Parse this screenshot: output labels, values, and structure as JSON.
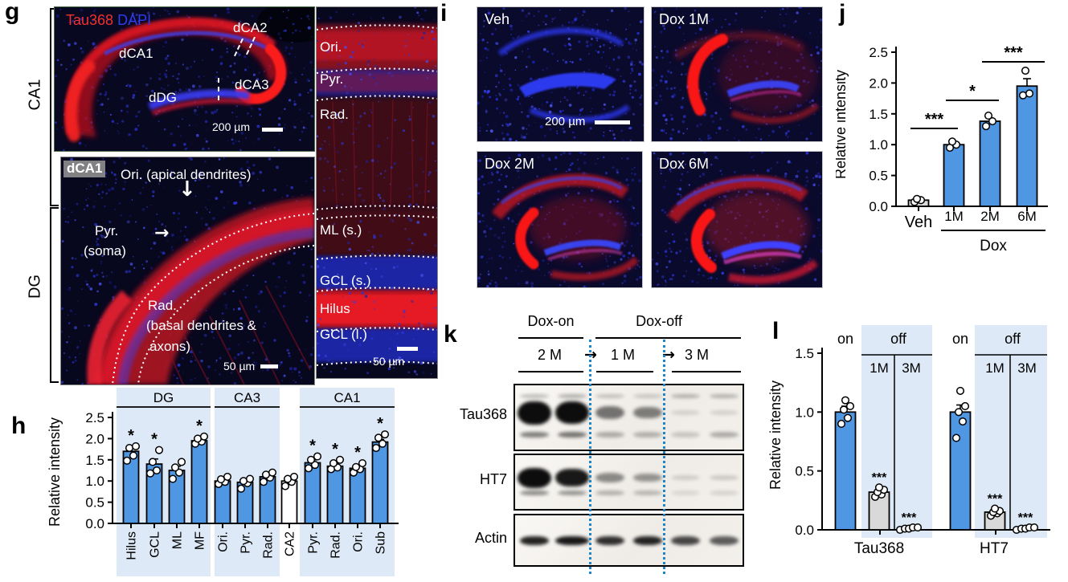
{
  "colors": {
    "bar_blue": "#4f97e3",
    "bar_gray": "#d9d9d9",
    "shade_blue": "#dde9f6",
    "stain_red": "#f23030",
    "stain_blue": "#2f3cf0",
    "blot_divider_blue": "#1e86c8"
  },
  "panels": {
    "g": {
      "letter": "g",
      "bracket_top": "CA1",
      "bracket_bottom": "DG",
      "main_image": {
        "stain_label_red": "Tau368",
        "stain_label_blue": "DAPI",
        "region_dca1": "dCA1",
        "region_dca2": "dCA2",
        "region_dca3": "dCA3",
        "region_ddg": "dDG",
        "scalebar": "200 µm"
      },
      "inset_image": {
        "tag": "dCA1",
        "ori_label": "Ori. (apical dendrites)",
        "arrow_down": "↓",
        "arrow_right": "→",
        "pyr_label_1": "Pyr.",
        "pyr_label_2": "(soma)",
        "rad_label_1": "Rad.",
        "rad_label_2": "(basal dendrites &",
        "rad_label_3": "axons)",
        "scalebar": "50 µm"
      },
      "strip_image": {
        "layer_ori": "Ori.",
        "layer_pyr": "Pyr.",
        "layer_rad": "Rad.",
        "layer_ml": "ML (s.)",
        "layer_gcl_s": "GCL (s.)",
        "layer_hilus": "Hilus",
        "layer_gcl_i": "GCL (l.)",
        "scalebar": "50 µm"
      }
    },
    "h": {
      "letter": "h"
    },
    "i": {
      "letter": "i",
      "images": [
        {
          "label": "Veh",
          "scalebar": "200 µm"
        },
        {
          "label": "Dox 1M"
        },
        {
          "label": "Dox 2M"
        },
        {
          "label": "Dox 6M"
        }
      ]
    },
    "j": {
      "letter": "j"
    },
    "k": {
      "letter": "k",
      "header_on": "Dox-on",
      "header_off": "Dox-off",
      "arrow": "→",
      "lane_times": [
        "2 M",
        "1 M",
        "3 M"
      ],
      "rows": [
        {
          "label": "Tau368",
          "lanes": [
            1,
            0.95,
            0.5,
            0.45,
            0.08,
            0.08
          ]
        },
        {
          "label": "HT7",
          "lanes": [
            1,
            0.9,
            0.4,
            0.35,
            0.1,
            0.12
          ]
        },
        {
          "label": "Actin",
          "lanes": [
            0.85,
            0.9,
            0.8,
            0.85,
            0.7,
            0.6
          ]
        }
      ]
    },
    "l": {
      "letter": "l"
    }
  },
  "chart_data": [
    {
      "id": "h",
      "type": "bar",
      "title": "",
      "xlabel": "",
      "ylabel": "Relative intensity",
      "ylim": [
        0,
        2.5
      ],
      "yticks": [
        0,
        0.5,
        1,
        1.5,
        2,
        2.5
      ],
      "grid": false,
      "groups": [
        {
          "name": "DG",
          "shaded": true,
          "bars": [
            {
              "label": "Hilus",
              "value": 1.7,
              "err": 0.08,
              "sig": "*",
              "fill": "blue",
              "points": [
                1.48,
                1.6,
                1.78,
                1.82
              ]
            },
            {
              "label": "GCL",
              "value": 1.4,
              "err": 0.12,
              "sig": "*",
              "fill": "blue",
              "points": [
                1.18,
                1.25,
                1.45,
                1.73
              ]
            },
            {
              "label": "ML",
              "value": 1.25,
              "err": 0.1,
              "sig": "",
              "fill": "blue",
              "points": [
                1.05,
                1.2,
                1.32,
                1.45
              ]
            },
            {
              "label": "MF",
              "value": 1.95,
              "err": 0.05,
              "sig": "*",
              "fill": "blue",
              "points": [
                1.88,
                1.93,
                2.0,
                2.05
              ]
            }
          ]
        },
        {
          "name": "CA3",
          "shaded": true,
          "bars": [
            {
              "label": "Ori.",
              "value": 1.0,
              "err": 0.05,
              "sig": "",
              "fill": "blue",
              "points": [
                0.93,
                0.98,
                1.04,
                1.1
              ]
            },
            {
              "label": "Pyr.",
              "value": 0.97,
              "err": 0.06,
              "sig": "",
              "fill": "blue",
              "points": [
                0.82,
                0.95,
                1.0,
                1.05
              ]
            },
            {
              "label": "Rad.",
              "value": 1.1,
              "err": 0.05,
              "sig": "",
              "fill": "blue",
              "points": [
                0.98,
                1.08,
                1.15,
                1.2
              ]
            }
          ]
        },
        {
          "name": "",
          "shaded": false,
          "bars": [
            {
              "label": "CA2",
              "value": 1.0,
              "err": 0.05,
              "sig": "",
              "fill": "white",
              "points": [
                0.88,
                0.98,
                1.05,
                1.1
              ]
            }
          ]
        },
        {
          "name": "CA1",
          "shaded": true,
          "bars": [
            {
              "label": "Pyr.",
              "value": 1.43,
              "err": 0.07,
              "sig": "*",
              "fill": "blue",
              "points": [
                1.3,
                1.38,
                1.5,
                1.58
              ]
            },
            {
              "label": "Rad.",
              "value": 1.35,
              "err": 0.06,
              "sig": "*",
              "fill": "blue",
              "points": [
                1.28,
                1.32,
                1.42,
                1.5
              ]
            },
            {
              "label": "Ori.",
              "value": 1.3,
              "err": 0.05,
              "sig": "*",
              "fill": "blue",
              "points": [
                1.2,
                1.28,
                1.33,
                1.42
              ]
            },
            {
              "label": "Sub",
              "value": 1.92,
              "err": 0.06,
              "sig": "*",
              "fill": "blue",
              "points": [
                1.78,
                1.88,
                2.02,
                2.1
              ]
            }
          ]
        }
      ]
    },
    {
      "id": "j",
      "type": "bar",
      "title": "",
      "xlabel": "",
      "ylabel": "Relative intensity",
      "ylim": [
        0,
        2.5
      ],
      "yticks": [
        0,
        0.5,
        1,
        1.5,
        2,
        2.5
      ],
      "grid": false,
      "bars": [
        {
          "label": "Veh",
          "value": 0.1,
          "err": 0.02,
          "sig": "",
          "fill": "gray",
          "points": [
            0.07,
            0.1,
            0.12
          ]
        },
        {
          "label": "1M",
          "value": 1.0,
          "err": 0.04,
          "sig": "",
          "fill": "blue",
          "points": [
            0.95,
            1.0,
            1.05
          ]
        },
        {
          "label": "2M",
          "value": 1.38,
          "err": 0.05,
          "sig": "",
          "fill": "blue",
          "points": [
            1.3,
            1.38,
            1.47
          ]
        },
        {
          "label": "6M",
          "value": 1.95,
          "err": 0.12,
          "sig": "",
          "fill": "blue",
          "points": [
            1.8,
            1.83,
            2.2
          ]
        }
      ],
      "sig_brackets": [
        {
          "from": "Veh",
          "to": "1M",
          "label": "***"
        },
        {
          "from": "1M",
          "to": "2M",
          "label": "*"
        },
        {
          "from": "2M",
          "to": "6M",
          "label": "***"
        }
      ],
      "x_group": {
        "label": "Dox",
        "members": [
          "1M",
          "2M",
          "6M"
        ]
      }
    },
    {
      "id": "l",
      "type": "bar",
      "title": "",
      "xlabel": "",
      "ylabel": "Relative intensity",
      "ylim": [
        0,
        1.5
      ],
      "yticks": [
        0,
        0.5,
        1,
        1.5
      ],
      "grid": false,
      "groups": [
        {
          "name": "Tau368",
          "on_label": "on",
          "off_label": "off",
          "off_sub": [
            "1M",
            "3M"
          ],
          "bars": [
            {
              "label": "on",
              "value": 1.0,
              "err": 0.05,
              "sig": "",
              "fill": "blue",
              "points": [
                0.9,
                0.95,
                1.02,
                1.05,
                1.1
              ]
            },
            {
              "label": "1M",
              "value": 0.32,
              "err": 0.02,
              "sig": "***",
              "fill": "gray",
              "points": [
                0.28,
                0.3,
                0.32,
                0.34,
                0.36
              ]
            },
            {
              "label": "3M",
              "value": 0.01,
              "err": 0,
              "sig": "***",
              "fill": "gray",
              "points": [
                0,
                0.01,
                0.01,
                0.02,
                0.02
              ]
            }
          ]
        },
        {
          "name": "HT7",
          "on_label": "on",
          "off_label": "off",
          "off_sub": [
            "1M",
            "3M"
          ],
          "bars": [
            {
              "label": "on",
              "value": 1.0,
              "err": 0.06,
              "sig": "",
              "fill": "blue",
              "points": [
                0.78,
                0.92,
                1.0,
                1.05,
                1.18
              ]
            },
            {
              "label": "1M",
              "value": 0.15,
              "err": 0.02,
              "sig": "***",
              "fill": "gray",
              "points": [
                0.12,
                0.14,
                0.15,
                0.16,
                0.18
              ]
            },
            {
              "label": "3M",
              "value": 0.01,
              "err": 0,
              "sig": "***",
              "fill": "gray",
              "points": [
                0,
                0.01,
                0.01,
                0.02,
                0.02
              ]
            }
          ]
        }
      ]
    }
  ]
}
